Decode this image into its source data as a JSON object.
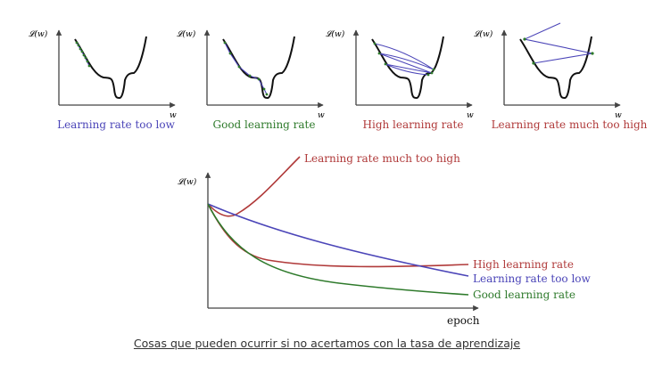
{
  "colors": {
    "blue": "#4b45b8",
    "green": "#2e7a2b",
    "red": "#b03a3a",
    "axis": "#444444",
    "curve": "#111111"
  },
  "panels": [
    {
      "key": "low",
      "label": "Learning rate too low",
      "color": "#4b45b8",
      "ylabel": "𝓛(w)",
      "xlabel": "w"
    },
    {
      "key": "good",
      "label": "Good learning rate",
      "color": "#2e7a2b",
      "ylabel": "𝓛(w)",
      "xlabel": "w"
    },
    {
      "key": "high",
      "label": "High learning rate",
      "color": "#b03a3a",
      "ylabel": "𝓛(w)",
      "xlabel": "w"
    },
    {
      "key": "veryhigh",
      "label": "Learning rate much too high",
      "color": "#b03a3a",
      "ylabel": "𝓛(w)",
      "xlabel": "w"
    }
  ],
  "bottom": {
    "ylabel": "𝓛(w)",
    "xlabel": "epoch",
    "series": [
      {
        "key": "veryhigh",
        "label": "Learning rate much too high",
        "color": "#b03a3a"
      },
      {
        "key": "high",
        "label": "High learning rate",
        "color": "#b03a3a"
      },
      {
        "key": "low",
        "label": "Learning rate too low",
        "color": "#4b45b8"
      },
      {
        "key": "good",
        "label": "Good learning rate",
        "color": "#2e7a2b"
      }
    ]
  },
  "caption": "Cosas que pueden ocurrir si no acertamos con la tasa de aprendizaje"
}
